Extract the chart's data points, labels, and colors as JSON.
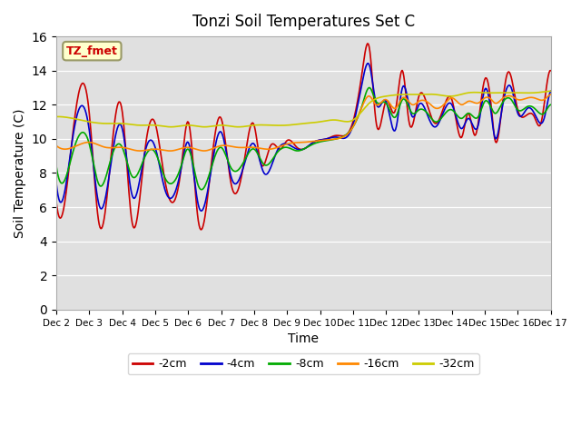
{
  "title": "Tonzi Soil Temperatures Set C",
  "xlabel": "Time",
  "ylabel": "Soil Temperature (C)",
  "ylim": [
    0,
    16
  ],
  "yticks": [
    0,
    2,
    4,
    6,
    8,
    10,
    12,
    14,
    16
  ],
  "bg_color": "#e0e0e0",
  "series_colors": {
    "-2cm": "#cc0000",
    "-4cm": "#0000cc",
    "-8cm": "#00aa00",
    "-16cm": "#ff8800",
    "-32cm": "#cccc00"
  },
  "legend_label": "TZ_fmet",
  "legend_bg": "#ffffcc",
  "legend_border": "#999966",
  "x_tick_labels": [
    "Dec 2",
    "Dec 3",
    "Dec 4",
    "Dec 5",
    "Dec 6",
    "Dec 7",
    "Dec 8",
    "Dec 9",
    "Dec 10",
    "Dec 11",
    "Dec 12",
    "Dec 13",
    "Dec 14",
    "Dec 15",
    "Dec 16",
    "Dec 17"
  ],
  "keypoints_2cm": [
    0.0,
    6.3,
    0.2,
    5.7,
    0.5,
    10.3,
    1.0,
    11.5,
    1.3,
    5.0,
    1.7,
    9.8,
    2.0,
    11.6,
    2.3,
    5.1,
    2.7,
    9.5,
    3.0,
    10.9,
    3.3,
    7.5,
    3.8,
    8.5,
    4.0,
    11.0,
    4.3,
    5.3,
    4.7,
    8.5,
    5.0,
    11.2,
    5.3,
    7.4,
    5.7,
    8.7,
    6.0,
    10.8,
    6.2,
    8.6,
    6.5,
    9.6,
    6.8,
    9.4,
    7.0,
    9.9,
    7.3,
    9.5,
    7.5,
    9.4,
    7.8,
    9.8,
    8.2,
    10.0,
    8.5,
    10.2,
    9.0,
    11.0,
    9.3,
    14.2,
    9.5,
    15.3,
    9.7,
    11.0,
    10.0,
    12.2,
    10.3,
    11.8,
    10.5,
    14.0,
    10.7,
    11.0,
    11.0,
    12.5,
    11.2,
    12.3,
    11.5,
    10.9,
    11.8,
    12.1,
    12.0,
    12.3,
    12.3,
    10.1,
    12.5,
    11.5,
    12.7,
    10.2,
    13.0,
    13.5,
    13.2,
    11.8,
    13.3,
    10.0,
    13.5,
    11.5,
    13.7,
    13.9,
    14.0,
    11.7,
    14.2,
    11.3,
    14.5,
    11.3,
    14.7,
    10.9,
    15.0,
    14.0,
    15.2,
    11.0,
    15.5,
    9.7
  ],
  "keypoints_4cm": [
    0.0,
    7.4,
    0.3,
    7.4,
    0.5,
    10.1,
    1.0,
    10.5,
    1.3,
    6.1,
    1.7,
    9.1,
    2.0,
    10.6,
    2.3,
    6.7,
    2.7,
    9.3,
    3.0,
    9.5,
    3.3,
    7.0,
    3.8,
    8.4,
    4.0,
    9.8,
    4.3,
    6.2,
    4.7,
    8.2,
    5.0,
    10.4,
    5.3,
    7.8,
    5.7,
    8.5,
    6.0,
    9.7,
    6.3,
    8.0,
    6.7,
    9.3,
    7.0,
    9.7,
    7.3,
    9.4,
    7.5,
    9.4,
    7.8,
    9.8,
    8.2,
    10.0,
    8.5,
    10.1,
    9.0,
    10.8,
    9.3,
    13.5,
    9.5,
    14.3,
    9.7,
    12.1,
    10.0,
    12.2,
    10.3,
    10.6,
    10.5,
    13.0,
    10.8,
    11.3,
    11.0,
    12.0,
    11.3,
    11.2,
    11.5,
    10.7,
    11.8,
    11.8,
    12.0,
    12.0,
    12.3,
    10.6,
    12.5,
    11.2,
    12.8,
    10.8,
    13.0,
    12.9,
    13.2,
    11.4,
    13.3,
    10.1,
    13.5,
    11.5,
    13.8,
    13.0,
    14.0,
    11.5,
    14.3,
    11.8,
    14.5,
    11.5,
    14.8,
    11.2,
    15.0,
    12.8,
    15.3,
    10.4,
    15.5,
    9.5
  ],
  "keypoints_8cm": [
    0.0,
    8.4,
    0.3,
    7.8,
    0.5,
    9.2,
    1.0,
    9.7,
    1.3,
    7.3,
    1.7,
    9.1,
    2.0,
    9.5,
    2.3,
    7.8,
    2.7,
    9.0,
    3.0,
    9.2,
    3.3,
    7.7,
    3.8,
    8.5,
    4.0,
    9.4,
    4.3,
    7.3,
    4.7,
    8.3,
    5.0,
    9.5,
    5.3,
    8.3,
    5.7,
    8.7,
    6.0,
    9.4,
    6.3,
    8.5,
    6.7,
    9.2,
    7.0,
    9.5,
    7.3,
    9.3,
    7.5,
    9.4,
    7.8,
    9.7,
    8.2,
    9.9,
    8.5,
    10.0,
    9.0,
    10.7,
    9.3,
    12.1,
    9.5,
    13.0,
    9.7,
    12.2,
    10.0,
    12.1,
    10.3,
    11.3,
    10.5,
    12.3,
    10.8,
    11.5,
    11.0,
    11.7,
    11.3,
    11.4,
    11.5,
    11.0,
    11.8,
    11.5,
    12.0,
    11.7,
    12.3,
    11.2,
    12.5,
    11.5,
    12.8,
    11.3,
    13.0,
    12.2,
    13.2,
    11.8,
    13.3,
    11.5,
    13.5,
    12.0,
    13.8,
    12.3,
    14.0,
    11.7,
    14.3,
    11.9,
    14.5,
    11.8,
    14.8,
    11.5,
    15.0,
    12.0,
    15.3,
    11.0,
    15.5,
    11.1
  ],
  "keypoints_16cm": [
    0.0,
    9.6,
    0.5,
    9.5,
    1.0,
    9.8,
    1.5,
    9.5,
    2.0,
    9.5,
    2.5,
    9.3,
    3.0,
    9.4,
    3.5,
    9.3,
    4.0,
    9.5,
    4.5,
    9.3,
    5.0,
    9.6,
    5.5,
    9.5,
    6.0,
    9.5,
    6.5,
    9.4,
    7.0,
    9.7,
    7.5,
    9.8,
    8.0,
    9.9,
    8.5,
    10.0,
    9.0,
    10.7,
    9.3,
    12.0,
    9.5,
    12.5,
    9.7,
    12.0,
    10.0,
    12.3,
    10.3,
    11.8,
    10.5,
    12.4,
    10.8,
    12.0,
    11.0,
    12.2,
    11.3,
    12.1,
    11.5,
    11.8,
    11.8,
    12.1,
    12.0,
    12.4,
    12.3,
    12.0,
    12.5,
    12.2,
    12.8,
    12.1,
    13.0,
    12.4,
    13.2,
    12.3,
    13.3,
    12.1,
    13.5,
    12.3,
    13.8,
    12.5,
    14.0,
    12.3,
    14.3,
    12.4,
    14.5,
    12.4,
    14.8,
    12.3,
    15.0,
    12.6,
    15.3,
    12.2,
    15.5,
    12.0
  ],
  "keypoints_32cm": [
    0.0,
    11.3,
    0.5,
    11.2,
    1.0,
    11.0,
    1.5,
    10.9,
    2.0,
    10.9,
    2.5,
    10.8,
    3.0,
    10.8,
    3.5,
    10.7,
    4.0,
    10.8,
    4.5,
    10.7,
    5.0,
    10.8,
    5.5,
    10.7,
    6.0,
    10.8,
    6.5,
    10.8,
    7.0,
    10.8,
    7.5,
    10.9,
    8.0,
    11.0,
    8.5,
    11.1,
    9.0,
    11.1,
    9.5,
    12.1,
    10.0,
    12.5,
    10.5,
    12.6,
    11.0,
    12.6,
    11.5,
    12.6,
    12.0,
    12.5,
    12.5,
    12.7,
    13.0,
    12.7,
    13.5,
    12.7,
    14.0,
    12.7,
    14.5,
    12.7,
    15.0,
    12.8,
    15.5,
    12.8
  ]
}
